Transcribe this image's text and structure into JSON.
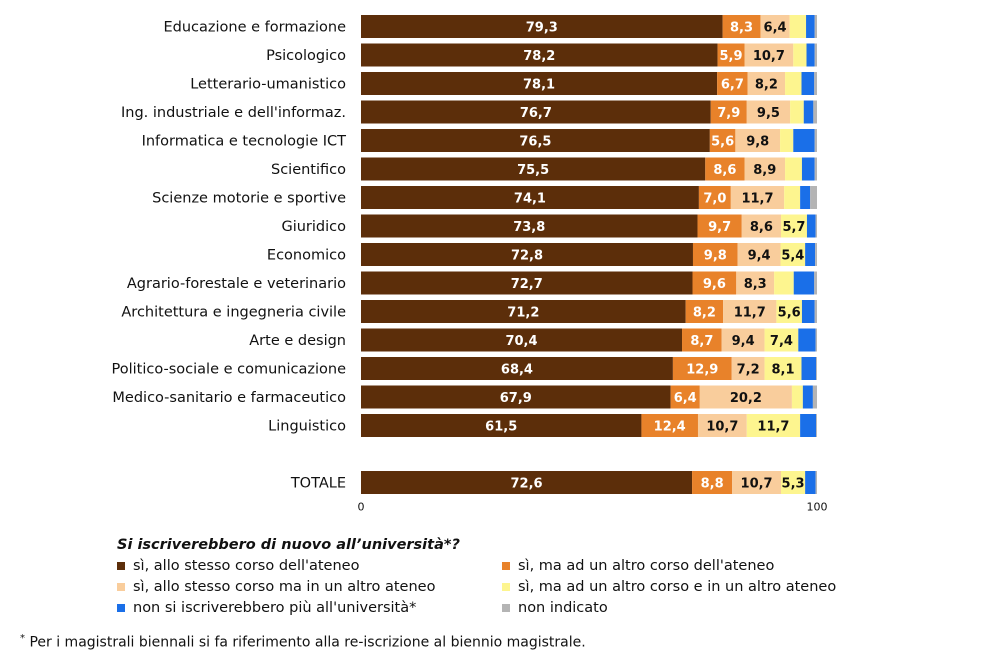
{
  "chart_data": {
    "type": "bar",
    "orientation": "horizontal",
    "stacked": true,
    "categories": [
      "Educazione e formazione",
      "Psicologico",
      "Letterario-umanistico",
      "Ing. industriale e dell'informaz.",
      "Informatica e tecnologie ICT",
      "Scientifico",
      "Scienze motorie e sportive",
      "Giuridico",
      "Economico",
      "Agrario-forestale e veterinario",
      "Architettura e ingegneria civile",
      "Arte e design",
      "Politico-sociale e comunicazione",
      "Medico-sanitario e farmaceutico",
      "Linguistico",
      "",
      "TOTALE"
    ],
    "series": [
      {
        "name": "sì, allo stesso corso dell'ateneo",
        "color": "#5c2e0a",
        "text_color": "#ffffff",
        "values": [
          79.3,
          78.2,
          78.1,
          76.7,
          76.5,
          75.5,
          74.1,
          73.8,
          72.8,
          72.7,
          71.2,
          70.4,
          68.4,
          67.9,
          61.5,
          null,
          72.6
        ],
        "labels": [
          "79,3",
          "78,2",
          "78,1",
          "76,7",
          "76,5",
          "75,5",
          "74,1",
          "73,8",
          "72,8",
          "72,7",
          "71,2",
          "70,4",
          "68,4",
          "67,9",
          "61,5",
          "",
          "72,6"
        ]
      },
      {
        "name": "sì, ma ad un altro corso dell'ateneo",
        "color": "#e8822a",
        "text_color": "#ffffff",
        "values": [
          8.3,
          5.9,
          6.7,
          7.9,
          5.6,
          8.6,
          7.0,
          9.7,
          9.8,
          9.6,
          8.2,
          8.7,
          12.9,
          6.4,
          12.4,
          null,
          8.8
        ],
        "labels": [
          "8,3",
          "5,9",
          "6,7",
          "7,9",
          "5,6",
          "8,6",
          "7,0",
          "9,7",
          "9,8",
          "9,6",
          "8,2",
          "8,7",
          "12,9",
          "6,4",
          "12,4",
          "",
          "8,8"
        ]
      },
      {
        "name": "sì, allo stesso corso ma in un altro ateneo",
        "color": "#f9cd9c",
        "text_color": "#111111",
        "values": [
          6.4,
          10.7,
          8.2,
          9.5,
          9.8,
          8.9,
          11.7,
          8.6,
          9.4,
          8.3,
          11.7,
          9.4,
          7.2,
          20.2,
          10.7,
          null,
          10.7
        ],
        "labels": [
          "6,4",
          "10,7",
          "8,2",
          "9,5",
          "9,8",
          "8,9",
          "11,7",
          "8,6",
          "9,4",
          "8,3",
          "11,7",
          "9,4",
          "7,2",
          "20,2",
          "10,7",
          "",
          "10,7"
        ]
      },
      {
        "name": "sì, ma ad un altro corso e in un altro ateneo",
        "color": "#fdf58f",
        "text_color": "#111111",
        "values": [
          3.6,
          2.9,
          3.6,
          3.0,
          2.9,
          3.7,
          3.5,
          5.7,
          5.4,
          4.3,
          5.6,
          7.4,
          8.1,
          2.4,
          11.7,
          null,
          5.3
        ],
        "labels": [
          "",
          "",
          "",
          "",
          "",
          "",
          "",
          "5,7",
          "5,4",
          "",
          "5,6",
          "7,4",
          "8,1",
          "",
          "11,7",
          "",
          "5,3"
        ]
      },
      {
        "name": "non si iscriverebbero più all'università*",
        "color": "#1a6fe8",
        "text_color": "#ffffff",
        "values": [
          1.9,
          1.8,
          2.8,
          2.1,
          4.7,
          2.8,
          2.2,
          1.9,
          2.2,
          4.5,
          2.8,
          3.8,
          3.2,
          2.2,
          3.5,
          null,
          2.3
        ],
        "labels": [
          "",
          "",
          "",
          "",
          "",
          "",
          "",
          "",
          "",
          "",
          "",
          "",
          "",
          "",
          "",
          "",
          ""
        ]
      },
      {
        "name": "non indicato",
        "color": "#b4b4b4",
        "text_color": "#111111",
        "values": [
          0.5,
          0.5,
          0.6,
          0.8,
          0.5,
          0.5,
          1.5,
          0.3,
          0.4,
          0.6,
          0.5,
          0.3,
          0.2,
          0.9,
          0.2,
          null,
          0.3
        ],
        "labels": [
          "",
          "",
          "",
          "",
          "",
          "",
          "",
          "",
          "",
          "",
          "",
          "",
          "",
          "",
          "",
          "",
          ""
        ]
      }
    ],
    "xlim": [
      0,
      100
    ],
    "xticks": [
      "0",
      "100"
    ],
    "legend_placement": "bottom",
    "grid": false
  },
  "legend": {
    "title": "Si iscriverebbero di nuovo all’università*?"
  },
  "footnote": {
    "marker": "*",
    "text": " Per i magistrali biennali si fa riferimento alla re-iscrizione al biennio magistrale."
  }
}
